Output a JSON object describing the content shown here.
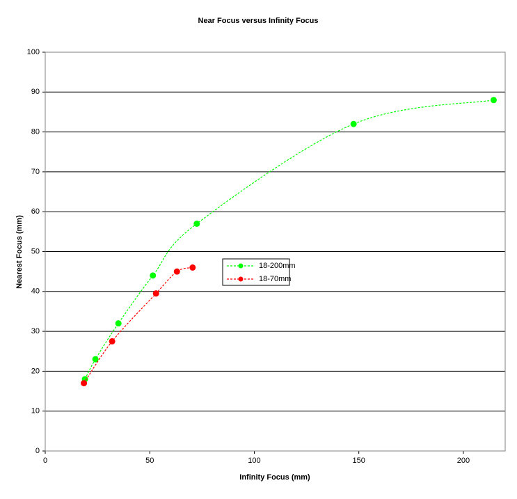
{
  "chart_data": {
    "type": "line",
    "title": "Near Focus versus Infinity Focus",
    "x_label": "Infinity Focus (mm)",
    "y_label": "Nearest Focus (mm)",
    "series": [
      {
        "name": "18-200mm",
        "color": "#00ff00",
        "x": [
          19,
          24,
          35,
          51.5,
          72.5,
          147.5,
          214.5
        ],
        "values": [
          18,
          23,
          32,
          44,
          57,
          82,
          88
        ]
      },
      {
        "name": "18-70mm",
        "color": "#ff0000",
        "x": [
          18.5,
          32,
          53,
          63,
          70.5
        ],
        "values": [
          17,
          27.5,
          39.5,
          45,
          46
        ]
      }
    ],
    "xlim": [
      0,
      220
    ],
    "xticks": [
      0,
      50,
      100,
      150,
      200
    ],
    "ylim": [
      0,
      100
    ],
    "yticks": [
      0,
      10,
      20,
      30,
      40,
      50,
      60,
      70,
      80,
      90,
      100
    ],
    "grid": true
  }
}
